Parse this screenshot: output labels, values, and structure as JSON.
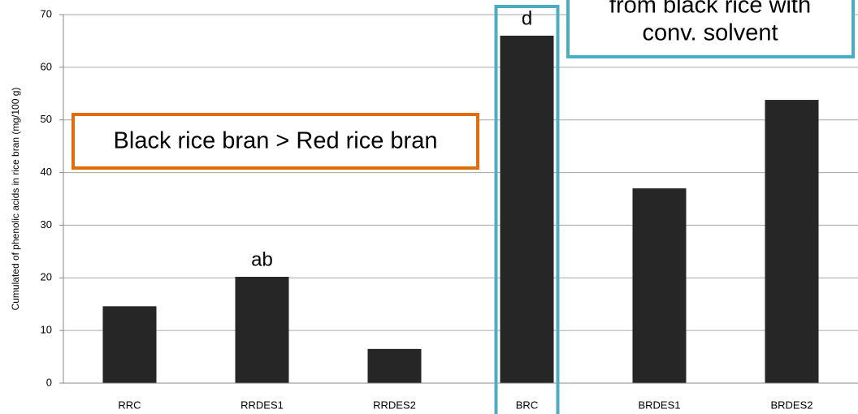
{
  "chart_data": {
    "type": "bar",
    "y_label": "Cumulated of phenolic acids in rice bran (mg/100 g)",
    "categories": [
      "RRC",
      "RRDES1",
      "RRDES2",
      "BRC",
      "BRDES1",
      "BRDES2"
    ],
    "values": [
      14.6,
      20.2,
      6.5,
      66,
      37,
      53.8
    ],
    "bar_labels": [
      null,
      "ab",
      null,
      "d",
      null,
      null
    ],
    "color": "#262626",
    "ylim": [
      0,
      70
    ],
    "yticks": [
      0,
      10,
      20,
      30,
      40,
      50,
      60,
      70
    ],
    "grid": true,
    "annotations": [
      "Black rice bran > Red rice bran",
      "from black rice with",
      "conv. solvent"
    ]
  }
}
